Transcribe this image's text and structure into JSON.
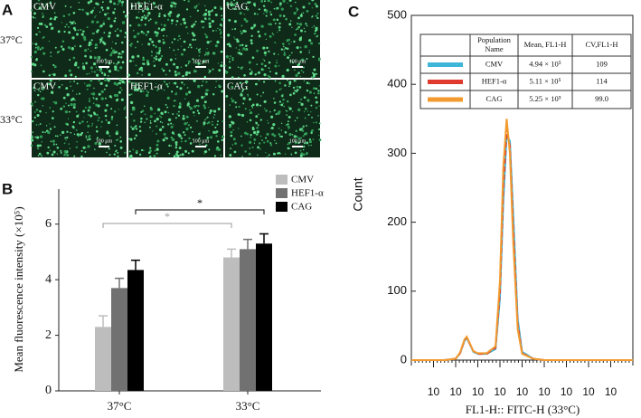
{
  "panel_a": {
    "label": "A",
    "scale_bar": "100 μm",
    "rows": [
      {
        "label": "37°C",
        "tiles": [
          "CMV",
          "HEF1-α",
          "CAG"
        ]
      },
      {
        "label": "33°C",
        "tiles": [
          "CMV",
          "HEF1-α",
          "CAG"
        ]
      }
    ]
  },
  "chart_data": [
    {
      "type": "bar",
      "label": "B",
      "ylabel": "Mean fluorescence intensity (×10⁵)",
      "categories": [
        "37°C",
        "33°C"
      ],
      "series": [
        {
          "name": "CMV",
          "color": "#bdbdbd",
          "values": [
            2.3,
            4.8
          ],
          "errors": [
            0.4,
            0.3
          ]
        },
        {
          "name": "HEF1-α",
          "color": "#717171",
          "values": [
            3.7,
            5.1
          ],
          "errors": [
            0.35,
            0.35
          ]
        },
        {
          "name": "CAG",
          "color": "#000000",
          "values": [
            4.35,
            5.3
          ],
          "errors": [
            0.35,
            0.35
          ]
        }
      ],
      "ylim": [
        0,
        7
      ],
      "yticks": [
        0,
        2,
        4,
        6
      ],
      "significance": [
        {
          "label": "*",
          "color": "#999999"
        },
        {
          "label": "*",
          "color": "#000000"
        }
      ]
    },
    {
      "type": "line",
      "label": "C",
      "xlabel": "FL1-H:: FITC-H (33°C)",
      "ylabel": "Count",
      "x": [
        0,
        0.5,
        1,
        1.5,
        2,
        2.2,
        2.4,
        2.5,
        2.6,
        2.8,
        3,
        3.4,
        3.8,
        4.0,
        4.15,
        4.3,
        4.45,
        4.6,
        4.8,
        5,
        5.5,
        6,
        7,
        8,
        9,
        10
      ],
      "series": [
        {
          "name": "CMV",
          "color": "#3fb6d9",
          "values": [
            0,
            0,
            0,
            0,
            2,
            10,
            28,
            32,
            26,
            12,
            9,
            9,
            16,
            90,
            230,
            325,
            318,
            210,
            60,
            12,
            2,
            0,
            0,
            0,
            0,
            0
          ]
        },
        {
          "name": "HEF1-α",
          "color": "#e03a2f",
          "dashed": true,
          "values": [
            0,
            0,
            0,
            0,
            2,
            10,
            29,
            33,
            26,
            13,
            9,
            9,
            18,
            100,
            250,
            335,
            310,
            190,
            52,
            10,
            2,
            0,
            0,
            0,
            0,
            0
          ]
        },
        {
          "name": "CAG",
          "color": "#f39a2e",
          "values": [
            0,
            0,
            0,
            0,
            2,
            11,
            30,
            34,
            27,
            13,
            10,
            10,
            20,
            115,
            280,
            350,
            300,
            170,
            45,
            9,
            2,
            0,
            0,
            0,
            0,
            0
          ]
        }
      ],
      "xlim": [
        0,
        10
      ],
      "xticks": [
        {
          "value": 1,
          "label": "10"
        },
        {
          "value": 2,
          "label": "10"
        },
        {
          "value": 3,
          "label": "10"
        },
        {
          "value": 4,
          "label": "10"
        },
        {
          "value": 5,
          "label": "10"
        },
        {
          "value": 6,
          "label": "10"
        },
        {
          "value": 7,
          "label": "10"
        },
        {
          "value": 8,
          "label": "10"
        },
        {
          "value": 9,
          "label": "10"
        }
      ],
      "ylim": [
        0,
        500
      ],
      "yticks": [
        0,
        100,
        200,
        300,
        400,
        500
      ],
      "table": {
        "header": [
          "Population Name",
          "Mean, FL1-H",
          "CV,FL1-H"
        ],
        "rows": [
          [
            "CMV",
            "4.94 × 10⁵",
            "109"
          ],
          [
            "HEF1-α",
            "5.11 × 10⁵",
            "114"
          ],
          [
            "CAG",
            "5.25 × 10⁵",
            "99.0"
          ]
        ]
      }
    }
  ]
}
